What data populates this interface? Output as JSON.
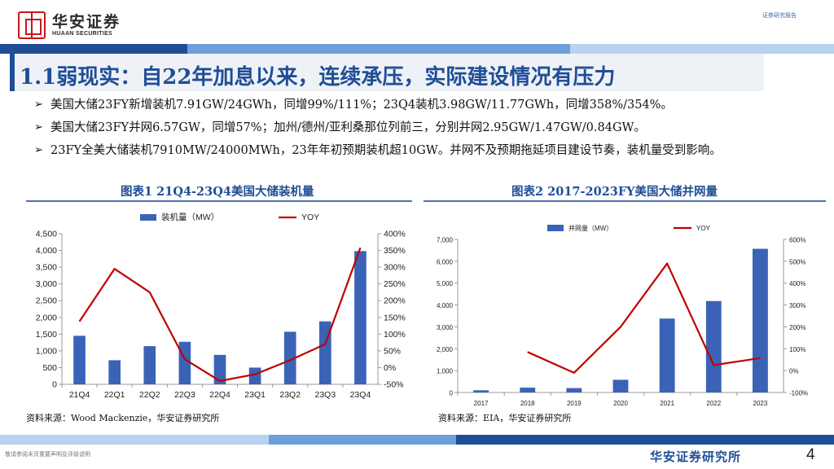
{
  "header": {
    "logo_cn": "华安证券",
    "logo_en": "HUAAN SECURITIES",
    "report_tag": "证券研究报告"
  },
  "title": "1.1弱现实：自22年加息以来，连续承压，实际建设情况有压力",
  "bullets": [
    "美国大储23FY新增装机7.91GW/24GWh，同增99%/111%；23Q4装机3.98GW/11.77GWh，同增358%/354%。",
    "美国大储23FY并网6.57GW，同增57%；加州/德州/亚利桑那位列前三，分别并网2.95GW/1.47GW/0.84GW。",
    "23FY全美大储装机7910MW/24000MWh，23年年初预期装机超10GW。并网不及预期拖延项目建设节奏，装机量受到影响。"
  ],
  "bullet_marker": "➢",
  "colors": {
    "bar": "#3a63b8",
    "line": "#c00000",
    "title_blue": "#1f4e96",
    "band_1": "#1f4e96",
    "band_2": "#6f9fd8",
    "band_3": "#b9d2ef"
  },
  "chart_data": [
    {
      "type": "bar",
      "title": "图表1 21Q4-23Q4美国大储装机量",
      "categories": [
        "21Q4",
        "22Q1",
        "22Q2",
        "22Q3",
        "22Q4",
        "23Q1",
        "23Q2",
        "23Q3",
        "23Q4"
      ],
      "series": [
        {
          "name": "装机量（MW）",
          "type": "bar",
          "axis": "left",
          "values": [
            1450,
            720,
            1140,
            1270,
            880,
            500,
            1570,
            1880,
            3980
          ]
        },
        {
          "name": "YOY",
          "type": "line",
          "axis": "right",
          "values": [
            1.38,
            2.95,
            2.25,
            0.25,
            -0.4,
            -0.2,
            0.22,
            0.7,
            3.58
          ]
        }
      ],
      "y_left": {
        "min": 0,
        "max": 4500,
        "ticks": [
          "0",
          "500",
          "1,000",
          "1,500",
          "2,000",
          "2,500",
          "3,000",
          "3,500",
          "4,000",
          "4,500"
        ]
      },
      "y_right": {
        "min": -0.5,
        "max": 4.0,
        "ticks": [
          "-50%",
          "0%",
          "50%",
          "100%",
          "150%",
          "200%",
          "250%",
          "300%",
          "350%",
          "400%"
        ]
      },
      "legend": "top-center",
      "source": "资料来源：Wood Mackenzie，华安证券研究所"
    },
    {
      "type": "bar",
      "title": "图表2 2017-2023FY美国大储并网量",
      "categories": [
        "2017",
        "2018",
        "2019",
        "2020",
        "2021",
        "2022",
        "2023"
      ],
      "series": [
        {
          "name": "并网量（MW）",
          "type": "bar",
          "axis": "left",
          "values": [
            100,
            220,
            200,
            580,
            3380,
            4180,
            6570
          ]
        },
        {
          "name": "YOY",
          "type": "line",
          "axis": "right",
          "values": null,
          "points": [
            [
              1,
              0.85
            ],
            [
              2,
              -0.1
            ],
            [
              3,
              2.0
            ],
            [
              4,
              4.9
            ],
            [
              5,
              0.25
            ],
            [
              6,
              0.57
            ]
          ]
        }
      ],
      "y_left": {
        "min": 0,
        "max": 7000,
        "ticks": [
          "0",
          "1,000",
          "2,000",
          "3,000",
          "4,000",
          "5,000",
          "6,000",
          "7,000"
        ]
      },
      "y_right": {
        "min": -1.0,
        "max": 6.0,
        "ticks": [
          "-100%",
          "0%",
          "100%",
          "200%",
          "300%",
          "400%",
          "500%",
          "600%"
        ]
      },
      "legend": "top-center",
      "source": "资料来源：EIA，华安证券研究所"
    }
  ],
  "footer": {
    "disclaimer": "敬请参阅末页重要声明及评级说明",
    "org": "华安证券研究所",
    "page": "4"
  }
}
